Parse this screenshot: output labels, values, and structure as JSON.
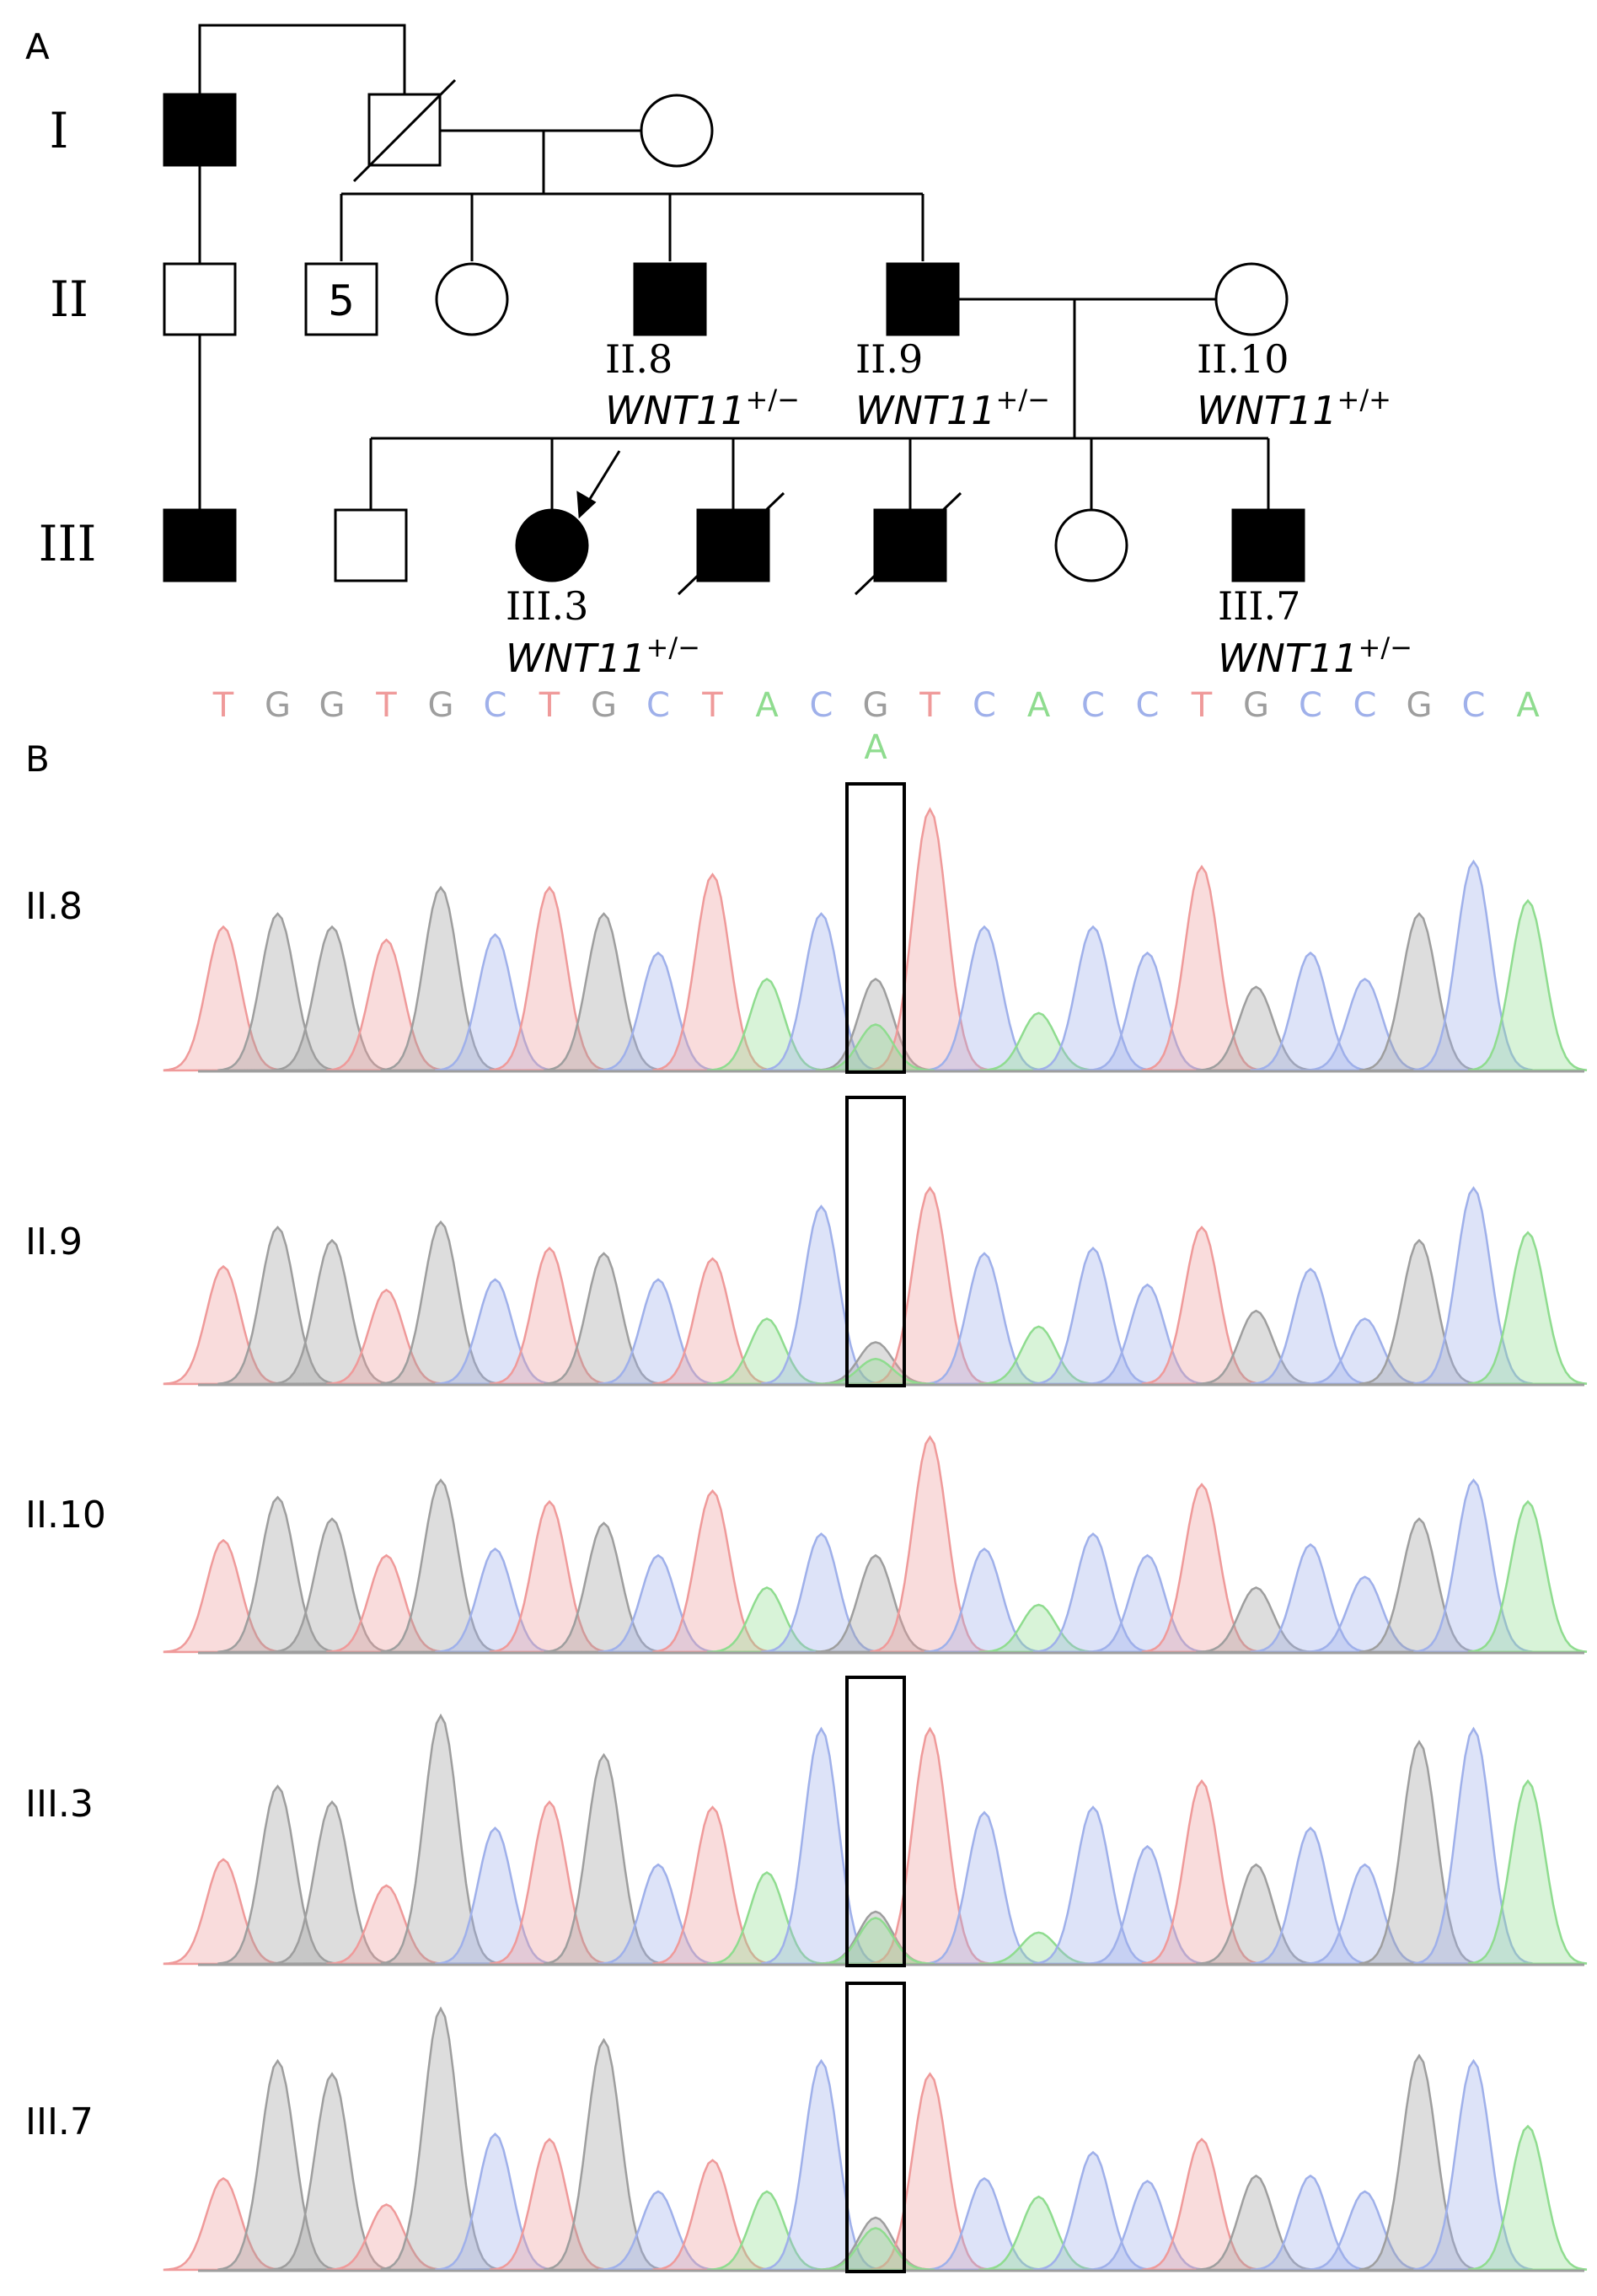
{
  "panel_a": {
    "label": "A",
    "generations": [
      "I",
      "II",
      "III"
    ],
    "sibship_count_label": "5",
    "carriers": [
      {
        "id": "II.8",
        "genotype_gene": "WNT11",
        "genotype_sup": "+/−"
      },
      {
        "id": "II.9",
        "genotype_gene": "WNT11",
        "genotype_sup": "+/−"
      },
      {
        "id": "II.10",
        "genotype_gene": "WNT11",
        "genotype_sup": "+/+"
      },
      {
        "id": "III.3",
        "genotype_gene": "WNT11",
        "genotype_sup": "+/−"
      },
      {
        "id": "III.7",
        "genotype_gene": "WNT11",
        "genotype_sup": "+/−"
      }
    ]
  },
  "panel_b": {
    "label": "B",
    "reference_sequence": [
      "T",
      "G",
      "G",
      "T",
      "G",
      "C",
      "T",
      "G",
      "C",
      "T",
      "A",
      "C",
      "G",
      "T",
      "C",
      "A",
      "C",
      "C",
      "T",
      "G",
      "C",
      "C",
      "G",
      "C",
      "A"
    ],
    "variant_base": "A",
    "variant_position_index": 12,
    "base_colors": {
      "T": "#ef9a9a",
      "G": "#9e9e9e",
      "C": "#9fb0ea",
      "A": "#8fdc8f"
    },
    "samples": [
      {
        "label": "II.8",
        "boxed": true,
        "peaks": [
          0.55,
          0.6,
          0.55,
          0.5,
          0.7,
          0.52,
          0.7,
          0.6,
          0.45,
          0.75,
          0.35,
          0.6,
          0.35,
          1.0,
          0.55,
          0.22,
          0.55,
          0.45,
          0.78,
          0.32,
          0.45,
          0.35,
          0.6,
          0.8,
          0.65
        ],
        "alt_peak": 0.22
      },
      {
        "label": "II.9",
        "boxed": true,
        "peaks": [
          0.45,
          0.6,
          0.55,
          0.36,
          0.62,
          0.4,
          0.52,
          0.5,
          0.4,
          0.48,
          0.25,
          0.68,
          0.16,
          0.75,
          0.5,
          0.22,
          0.52,
          0.38,
          0.6,
          0.28,
          0.44,
          0.25,
          0.55,
          0.75,
          0.58
        ],
        "alt_peak": 0.12
      },
      {
        "label": "II.10",
        "boxed": false,
        "peaks": [
          0.52,
          0.72,
          0.62,
          0.45,
          0.8,
          0.48,
          0.7,
          0.6,
          0.45,
          0.75,
          0.3,
          0.55,
          0.45,
          1.0,
          0.48,
          0.22,
          0.55,
          0.45,
          0.78,
          0.3,
          0.5,
          0.35,
          0.62,
          0.8,
          0.7
        ],
        "alt_peak": 0
      },
      {
        "label": "III.3",
        "boxed": true,
        "peaks": [
          0.4,
          0.68,
          0.62,
          0.3,
          0.95,
          0.52,
          0.62,
          0.8,
          0.38,
          0.6,
          0.35,
          0.9,
          0.2,
          0.9,
          0.58,
          0.12,
          0.6,
          0.45,
          0.7,
          0.38,
          0.52,
          0.38,
          0.85,
          0.9,
          0.7
        ],
        "alt_peak": 0.22
      },
      {
        "label": "III.7",
        "boxed": true,
        "peaks": [
          0.35,
          0.8,
          0.75,
          0.25,
          1.0,
          0.52,
          0.5,
          0.88,
          0.3,
          0.42,
          0.3,
          0.8,
          0.2,
          0.75,
          0.35,
          0.28,
          0.45,
          0.34,
          0.5,
          0.36,
          0.36,
          0.3,
          0.82,
          0.8,
          0.55
        ],
        "alt_peak": 0.2
      }
    ]
  }
}
